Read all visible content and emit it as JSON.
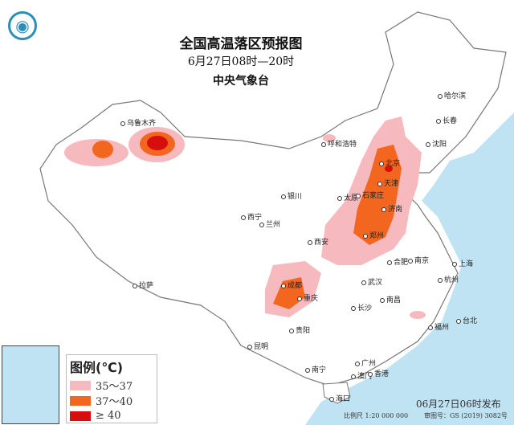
{
  "header": {
    "title": "全国高温落区预报图",
    "time_range": "6月27日08时—20时",
    "issuer": "中央气象台"
  },
  "legend": {
    "title": "图例(℃)",
    "items": [
      {
        "label": "35～37",
        "color": "#f6b9bd"
      },
      {
        "label": "37～40",
        "color": "#f2661f"
      },
      {
        "label": "≥ 40",
        "color": "#d80e0e"
      }
    ]
  },
  "cities": [
    {
      "name": "乌鲁木齐"
    },
    {
      "name": "哈尔滨"
    },
    {
      "name": "长春"
    },
    {
      "name": "沈阳"
    },
    {
      "name": "北京"
    },
    {
      "name": "天津"
    },
    {
      "name": "呼和浩特"
    },
    {
      "name": "银川"
    },
    {
      "name": "太原"
    },
    {
      "name": "石家庄"
    },
    {
      "name": "济南"
    },
    {
      "name": "西宁"
    },
    {
      "name": "兰州"
    },
    {
      "name": "郑州"
    },
    {
      "name": "西安"
    },
    {
      "name": "合肥"
    },
    {
      "name": "南京"
    },
    {
      "name": "上海"
    },
    {
      "name": "杭州"
    },
    {
      "name": "武汉"
    },
    {
      "name": "成都"
    },
    {
      "name": "重庆"
    },
    {
      "name": "拉萨"
    },
    {
      "name": "长沙"
    },
    {
      "name": "南昌"
    },
    {
      "name": "福州"
    },
    {
      "name": "台北"
    },
    {
      "name": "贵阳"
    },
    {
      "name": "昆明"
    },
    {
      "name": "南宁"
    },
    {
      "name": "广州"
    },
    {
      "name": "澳门"
    },
    {
      "name": "香港"
    },
    {
      "name": "海口"
    }
  ],
  "footer": {
    "issued": "06月27日06时发布",
    "scale": "比例尺 1:20 000 000",
    "map_no": "审图号：GS (2019) 3082号"
  },
  "colors": {
    "sea": "#bfe3f2",
    "land": "#ffffff",
    "border": "#888888"
  }
}
